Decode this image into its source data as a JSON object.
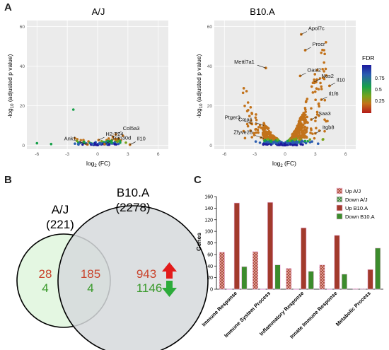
{
  "panels": {
    "A": "A",
    "B": "B",
    "C": "C"
  },
  "chart_data": [
    {
      "type": "scatter",
      "title": "A/J",
      "xlabel_base": "log",
      "xlabel_sub": "2",
      "xlabel_tail": " (FC)",
      "ylabel_head": "-log",
      "ylabel_sub": "10",
      "ylabel_tail": " (adjusted p value)",
      "xlim": [
        -7,
        7
      ],
      "ylim": [
        -2,
        63
      ],
      "xticks": [
        -6,
        -3,
        0,
        3,
        6
      ],
      "yticks": [
        0,
        20,
        40,
        60
      ],
      "grid": true,
      "background": "#ebebeb",
      "color_scale": "FDR",
      "labeled_points": [
        {
          "label": "Col5a3",
          "x": 1.8,
          "y": 5.5
        },
        {
          "label": "H2-T24",
          "x": 0.1,
          "y": 2.6
        },
        {
          "label": "Trim30d",
          "x": 0.7,
          "y": 0.6
        },
        {
          "label": "Ank1",
          "x": -1.0,
          "y": 0.4
        },
        {
          "label": "Il10",
          "x": 3.2,
          "y": 0.3
        }
      ],
      "points": [
        {
          "x": -6.0,
          "y": 1.0,
          "fdr": 0.5
        },
        {
          "x": -4.6,
          "y": 0.6,
          "fdr": 0.5
        },
        {
          "x": -1.7,
          "y": 1.2,
          "fdr": 0.4
        },
        {
          "x": -1.4,
          "y": 1.6,
          "fdr": 0.3
        },
        {
          "x": -1.2,
          "y": 0.8,
          "fdr": 0.2
        },
        {
          "x": -0.9,
          "y": 1.9,
          "fdr": 0.2
        },
        {
          "x": -0.6,
          "y": 0.9,
          "fdr": 0.5
        },
        {
          "x": -0.4,
          "y": 0.4,
          "fdr": 0.8
        },
        {
          "x": -0.2,
          "y": 1.5,
          "fdr": 0.6
        },
        {
          "x": 0.0,
          "y": 0.5,
          "fdr": 0.9
        },
        {
          "x": 0.2,
          "y": 1.1,
          "fdr": 0.7
        },
        {
          "x": 0.4,
          "y": 2.0,
          "fdr": 0.3
        },
        {
          "x": 0.6,
          "y": 1.0,
          "fdr": 0.5
        },
        {
          "x": 0.9,
          "y": 2.6,
          "fdr": 0.2
        },
        {
          "x": 1.1,
          "y": 3.4,
          "fdr": 0.1
        },
        {
          "x": 1.3,
          "y": 1.8,
          "fdr": 0.2
        },
        {
          "x": 1.5,
          "y": 4.3,
          "fdr": 0.1
        },
        {
          "x": 1.8,
          "y": 5.5,
          "fdr": 0.05
        },
        {
          "x": 2.0,
          "y": 3.0,
          "fdr": 0.1
        },
        {
          "x": 2.3,
          "y": 2.4,
          "fdr": 0.1
        },
        {
          "x": 2.5,
          "y": 4.8,
          "fdr": 0.05
        },
        {
          "x": 2.8,
          "y": 1.3,
          "fdr": 0.3
        },
        {
          "x": 3.2,
          "y": 0.3,
          "fdr": 0.15
        },
        {
          "x": -2.4,
          "y": 18.0,
          "fdr": 0.4
        },
        {
          "x": 1.0,
          "y": 0.3,
          "fdr": 0.9
        },
        {
          "x": -0.1,
          "y": 0.2,
          "fdr": 0.95
        }
      ]
    },
    {
      "type": "scatter",
      "title": "B10.A",
      "xlabel_base": "log",
      "xlabel_sub": "2",
      "xlabel_tail": " (FC)",
      "ylabel_head": "-log",
      "ylabel_sub": "10",
      "ylabel_tail": " (adjusted p value)",
      "xlim": [
        -7,
        7
      ],
      "ylim": [
        -2,
        63
      ],
      "xticks": [
        -6,
        -3,
        0,
        3,
        6
      ],
      "yticks": [
        0,
        20,
        40,
        60
      ],
      "grid": true,
      "background": "#ebebeb",
      "color_scale": "FDR",
      "legend_title": "FDR",
      "legend_ticks": [
        0.75,
        0.5,
        0.25
      ],
      "legend_colors": [
        "#1d1a9e",
        "#2a5db0",
        "#18a14a",
        "#79a31a",
        "#c2721a",
        "#b51a1a"
      ],
      "labeled_points": [
        {
          "label": "Apol7c",
          "x": 1.6,
          "y": 56.0
        },
        {
          "label": "Procr",
          "x": 2.0,
          "y": 48.0
        },
        {
          "label": "Oasl2",
          "x": 1.5,
          "y": 35.0
        },
        {
          "label": "Nos2",
          "x": 2.9,
          "y": 32.0
        },
        {
          "label": "Il10",
          "x": 4.4,
          "y": 30.0
        },
        {
          "label": "Il1f6",
          "x": 3.6,
          "y": 23.0
        },
        {
          "label": "Mettl7a1",
          "x": -1.9,
          "y": 39.0
        },
        {
          "label": "Ptger3",
          "x": -3.3,
          "y": 11.0
        },
        {
          "label": "Cma1",
          "x": -2.1,
          "y": 10.0
        },
        {
          "label": "Zfyve28",
          "x": -2.1,
          "y": 3.5
        },
        {
          "label": "Saa3",
          "x": 2.6,
          "y": 13.0
        },
        {
          "label": "Itgb8",
          "x": 3.0,
          "y": 6.0
        }
      ]
    },
    {
      "type": "venn",
      "sets": [
        {
          "name": "A/J",
          "total": "(221)",
          "only_up": "28",
          "only_down": "4",
          "color": "#e4f7e2"
        },
        {
          "name": "B10.A",
          "total": "(2278)",
          "only_up": "943",
          "only_down": "1146",
          "color": "#d6d9dc"
        }
      ],
      "overlap": {
        "up": "185",
        "down": "4"
      },
      "up_color": "#c9432c",
      "down_color": "#3a9a2c"
    },
    {
      "type": "bar",
      "ylabel": "Genes",
      "ylim": [
        0,
        160
      ],
      "yticks": [
        0,
        20,
        40,
        60,
        80,
        100,
        120,
        140,
        160
      ],
      "categories": [
        "Immune Response",
        "Immune System Process",
        "Inflammatory Response",
        "Innate Immune Response",
        "Metabolic Process"
      ],
      "series": [
        {
          "name": "Up A/J",
          "values": [
            64,
            65,
            36,
            42,
            1
          ],
          "color": "#a23a2c",
          "hatched": true
        },
        {
          "name": "Down A/J",
          "values": [
            0,
            0,
            0,
            0,
            1
          ],
          "color": "#2e6e2e",
          "hatched": true
        },
        {
          "name": "Up B10.A",
          "values": [
            149,
            150,
            106,
            93,
            34
          ],
          "color": "#a23a2c",
          "hatched": false
        },
        {
          "name": "Down B10.A",
          "values": [
            39,
            42,
            31,
            26,
            71
          ],
          "color": "#3c8c2c",
          "hatched": false
        }
      ]
    }
  ]
}
